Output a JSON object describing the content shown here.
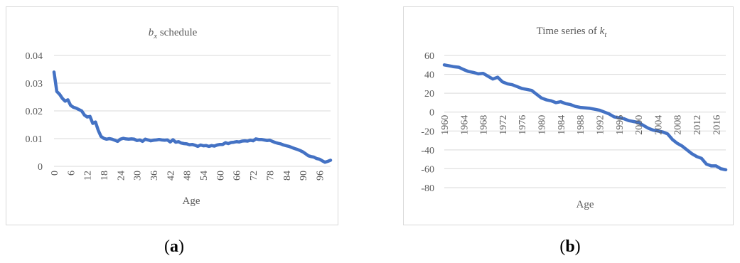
{
  "captions": {
    "a_open": "(",
    "a_letter": "a",
    "a_close": ")",
    "b_open": "(",
    "b_letter": "b",
    "b_close": ")"
  },
  "colors": {
    "line": "#4472c4",
    "grid": "#d9d9d9",
    "text": "#595959"
  },
  "chart_data": [
    {
      "type": "line",
      "title_var": "b",
      "title_sub": "x",
      "title_rest": " schedule",
      "xlabel": "Age",
      "ylabel": "",
      "ylim": [
        0,
        0.04
      ],
      "yticks": [
        "0",
        "0.01",
        "0.02",
        "0.03",
        "0.04"
      ],
      "ytick_values": [
        0,
        0.01,
        0.02,
        0.03,
        0.04
      ],
      "xlim": [
        0,
        100
      ],
      "xticks": [
        "0",
        "6",
        "12",
        "18",
        "24",
        "30",
        "36",
        "42",
        "48",
        "54",
        "60",
        "66",
        "72",
        "78",
        "84",
        "90",
        "96"
      ],
      "xtick_values": [
        0,
        6,
        12,
        18,
        24,
        30,
        36,
        42,
        48,
        54,
        60,
        66,
        72,
        78,
        84,
        90,
        96
      ],
      "grid": true,
      "series": [
        {
          "x": [
            0,
            1,
            2,
            3,
            4,
            5,
            6,
            7,
            8,
            9,
            10,
            11,
            12,
            13,
            14,
            15,
            16,
            17,
            18,
            19,
            20,
            21,
            22,
            23,
            24,
            25,
            26,
            27,
            28,
            29,
            30,
            31,
            32,
            33,
            34,
            35,
            36,
            37,
            38,
            39,
            40,
            41,
            42,
            43,
            44,
            45,
            46,
            47,
            48,
            49,
            50,
            51,
            52,
            53,
            54,
            55,
            56,
            57,
            58,
            59,
            60,
            61,
            62,
            63,
            64,
            65,
            66,
            67,
            68,
            69,
            70,
            71,
            72,
            73,
            74,
            75,
            76,
            77,
            78,
            79,
            80,
            81,
            82,
            83,
            84,
            85,
            86,
            87,
            88,
            89,
            90,
            91,
            92,
            93,
            94,
            95,
            96,
            97,
            98,
            99,
            100
          ],
          "values": [
            0.034,
            0.027,
            0.026,
            0.0245,
            0.0235,
            0.024,
            0.022,
            0.0213,
            0.021,
            0.0205,
            0.02,
            0.0185,
            0.0178,
            0.018,
            0.0155,
            0.016,
            0.013,
            0.0108,
            0.0101,
            0.0098,
            0.01,
            0.0098,
            0.0094,
            0.009,
            0.0098,
            0.0101,
            0.0099,
            0.0098,
            0.0099,
            0.0098,
            0.0093,
            0.0095,
            0.009,
            0.0098,
            0.0095,
            0.0092,
            0.0094,
            0.0095,
            0.0097,
            0.0095,
            0.0094,
            0.0095,
            0.0088,
            0.0096,
            0.0087,
            0.0089,
            0.0084,
            0.0082,
            0.0081,
            0.0078,
            0.0079,
            0.0076,
            0.0072,
            0.0077,
            0.0074,
            0.0075,
            0.0072,
            0.0075,
            0.0073,
            0.0077,
            0.0079,
            0.0079,
            0.0085,
            0.0082,
            0.0086,
            0.0087,
            0.0089,
            0.0088,
            0.0091,
            0.0092,
            0.0091,
            0.0094,
            0.0092,
            0.0099,
            0.0097,
            0.0097,
            0.0095,
            0.0093,
            0.0094,
            0.009,
            0.0086,
            0.0083,
            0.0081,
            0.0077,
            0.0074,
            0.0072,
            0.0068,
            0.0064,
            0.0061,
            0.0057,
            0.0052,
            0.0045,
            0.0038,
            0.0035,
            0.0033,
            0.0028,
            0.0026,
            0.002,
            0.0015,
            0.0018,
            0.0022
          ]
        }
      ]
    },
    {
      "type": "line",
      "title_text": "Time series of ",
      "title_var": "k",
      "title_sub": "t",
      "xlabel": "Age",
      "ylabel": "",
      "ylim": [
        -80,
        60
      ],
      "yticks": [
        "60",
        "40",
        "20",
        "0",
        "-20",
        "-40",
        "-60",
        "-80"
      ],
      "ytick_values": [
        60,
        40,
        20,
        0,
        -20,
        -40,
        -60,
        -80
      ],
      "xlim": [
        1960,
        2018
      ],
      "xticks": [
        "1960",
        "1964",
        "1968",
        "1972",
        "1976",
        "1980",
        "1984",
        "1988",
        "1992",
        "1996",
        "2000",
        "2004",
        "2008",
        "2012",
        "2016"
      ],
      "xtick_values": [
        1960,
        1964,
        1968,
        1972,
        1976,
        1980,
        1984,
        1988,
        1992,
        1996,
        2000,
        2004,
        2008,
        2012,
        2016
      ],
      "grid": true,
      "series": [
        {
          "x": [
            1960,
            1961,
            1962,
            1963,
            1964,
            1965,
            1966,
            1967,
            1968,
            1969,
            1970,
            1971,
            1972,
            1973,
            1974,
            1975,
            1976,
            1977,
            1978,
            1979,
            1980,
            1981,
            1982,
            1983,
            1984,
            1985,
            1986,
            1987,
            1988,
            1989,
            1990,
            1991,
            1992,
            1993,
            1994,
            1995,
            1996,
            1997,
            1998,
            1999,
            2000,
            2001,
            2002,
            2003,
            2004,
            2005,
            2006,
            2007,
            2008,
            2009,
            2010,
            2011,
            2012,
            2013,
            2014,
            2015,
            2016,
            2017,
            2018
          ],
          "values": [
            50,
            49,
            48,
            47.5,
            45,
            43,
            42,
            40.5,
            41,
            38,
            35,
            37,
            32,
            30,
            29,
            27,
            25,
            24,
            23,
            19,
            15,
            13,
            12,
            10,
            11,
            9,
            8,
            6,
            5,
            4.5,
            4,
            3,
            2,
            0,
            -2,
            -5,
            -6,
            -7,
            -9,
            -10,
            -11,
            -14,
            -17,
            -19,
            -20,
            -21,
            -23,
            -29,
            -33,
            -36,
            -40,
            -44,
            -47,
            -49,
            -55,
            -57,
            -57,
            -60,
            -61
          ]
        }
      ]
    }
  ]
}
